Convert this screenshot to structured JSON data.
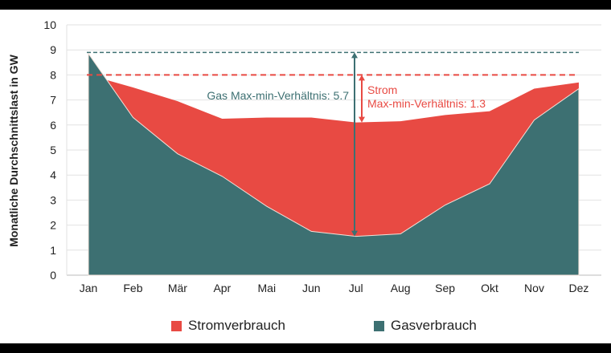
{
  "chart_data": {
    "type": "area",
    "title": "",
    "xlabel": "",
    "ylabel": "Monatliche Durchschnittslast in GW",
    "ylim": [
      0,
      10
    ],
    "yticks": [
      0,
      1,
      2,
      3,
      4,
      5,
      6,
      7,
      8,
      9,
      10
    ],
    "grid": true,
    "legend_position": "bottom",
    "categories": [
      "Jan",
      "Feb",
      "Mär",
      "Apr",
      "Mai",
      "Jun",
      "Jul",
      "Aug",
      "Sep",
      "Okt",
      "Nov",
      "Dez"
    ],
    "series": [
      {
        "name": "Stromverbrauch",
        "color": "#e84a43",
        "values": [
          8.0,
          7.5,
          6.95,
          6.25,
          6.3,
          6.3,
          6.1,
          6.15,
          6.4,
          6.55,
          7.45,
          7.7
        ]
      },
      {
        "name": "Gasverbrauch",
        "color": "#3d7072",
        "values": [
          8.85,
          6.3,
          4.85,
          3.95,
          2.75,
          1.75,
          1.55,
          1.65,
          2.8,
          3.65,
          6.2,
          7.45
        ]
      }
    ],
    "reference_lines": [
      {
        "value": 8.9,
        "color": "#3d7072",
        "style": "dashed"
      },
      {
        "value": 8.0,
        "color": "#e84a43",
        "style": "dashed"
      }
    ],
    "annotations": [
      {
        "text": "Gas Max-min-Verhältnis: 5.7",
        "color": "#3d7072",
        "from": 1.55,
        "to": 8.9,
        "month": "Jul"
      },
      {
        "text_line1": "Strom",
        "text_line2": "Max-min-Verhältnis: 1.3",
        "color": "#e84a43",
        "from": 6.1,
        "to": 8.0,
        "month": "Jul"
      }
    ]
  }
}
